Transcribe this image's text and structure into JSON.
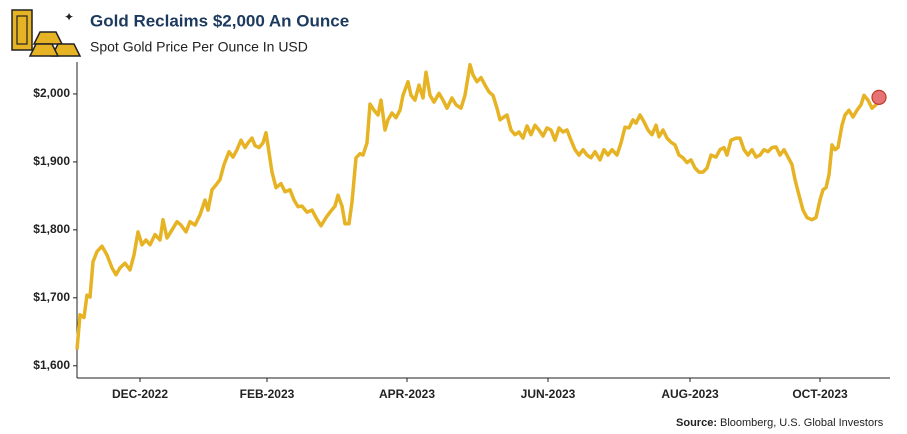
{
  "chart_data": {
    "type": "line",
    "title": "Gold Reclaims $2,000 An Ounce",
    "subtitle": "Spot Gold Price Per Ounce In USD",
    "source_label": "Source:",
    "source": "Bloomberg, U.S. Global Investors",
    "xlim": [
      0,
      406.5
    ],
    "xticks": [
      {
        "value": 31.5,
        "label": "DEC-2022"
      },
      {
        "value": 95,
        "label": "FEB-2023"
      },
      {
        "value": 165,
        "label": "APR-2023"
      },
      {
        "value": 235.5,
        "label": "JUN-2023"
      },
      {
        "value": 306.5,
        "label": "AUG-2023"
      },
      {
        "value": 371.5,
        "label": "OCT-2023"
      }
    ],
    "ylim": [
      1582,
      2047
    ],
    "yticks": [
      {
        "value": 1600,
        "label": "$1,600"
      },
      {
        "value": 1700,
        "label": "$1,700"
      },
      {
        "value": 1800,
        "label": "$1,800"
      },
      {
        "value": 1900,
        "label": "$1,900"
      },
      {
        "value": 2000,
        "label": "$2,000"
      }
    ],
    "grid": false,
    "last_point_marker": {
      "color": "#e57373",
      "stroke": "#c0392b"
    },
    "series": [
      {
        "name": "Spot Gold",
        "color": "#e6b325",
        "x": [
          0,
          1.5,
          3.5,
          5,
          6.5,
          8,
          10,
          12.5,
          15,
          17.5,
          19.5,
          21.5,
          24,
          26.5,
          28.5,
          30.5,
          32.5,
          34.5,
          36.5,
          39,
          41.5,
          43,
          45,
          47.5,
          50,
          52,
          54.5,
          56.5,
          59,
          61.5,
          64,
          65.5,
          67.5,
          69.5,
          71.5,
          73.5,
          76,
          78,
          80,
          82,
          84,
          85.5,
          87.5,
          89,
          91,
          93,
          94.5,
          95.5,
          97.5,
          99.5,
          102,
          104,
          106.5,
          108.5,
          110.5,
          112.5,
          115,
          117.5,
          119.5,
          122,
          124.5,
          126.5,
          129,
          130.5,
          132.5,
          134,
          136,
          137.5,
          139.5,
          141.5,
          143,
          145,
          146.5,
          148.5,
          150.5,
          152,
          154,
          155.5,
          157.5,
          159.5,
          161.5,
          163,
          165.5,
          167,
          169,
          171,
          173,
          174.5,
          176.5,
          178.5,
          181,
          183,
          185,
          187.5,
          189.5,
          192,
          194,
          196.5,
          198,
          200,
          202,
          204,
          206,
          208,
          210,
          211.5,
          213,
          215,
          217,
          219,
          221,
          223,
          225,
          227,
          229,
          231,
          233,
          235,
          237,
          239,
          241,
          243,
          245,
          247,
          249,
          251,
          253,
          255,
          257,
          259,
          261.5,
          263.5,
          265.5,
          267.5,
          270,
          272,
          274,
          276,
          278,
          279.5,
          281.5,
          283.5,
          285.5,
          287.5,
          289.5,
          291,
          293,
          295,
          297,
          299,
          301,
          303,
          305,
          307,
          309,
          311,
          313,
          315,
          317,
          319.5,
          321.5,
          323.5,
          325,
          327,
          329.5,
          331.5,
          333.5,
          335.5,
          337.5,
          339.5,
          341.5,
          343.5,
          345.5,
          347.5,
          349.5,
          351.5,
          353.5,
          355.5,
          357.5,
          359,
          361,
          363,
          365,
          367.5,
          369.5,
          371.5,
          373,
          374.5,
          376,
          377.5,
          379,
          380.5,
          382.5,
          384,
          386,
          388,
          390,
          392,
          393.5,
          395.5,
          397.5,
          399.5,
          401
        ],
        "values": [
          1624,
          1675,
          1671,
          1704,
          1701,
          1753,
          1768,
          1776,
          1763,
          1744,
          1734,
          1744,
          1751,
          1741,
          1763,
          1797,
          1778,
          1785,
          1778,
          1793,
          1785,
          1815,
          1788,
          1800,
          1812,
          1807,
          1797,
          1812,
          1807,
          1822,
          1844,
          1829,
          1859,
          1866,
          1874,
          1896,
          1915,
          1907,
          1918,
          1932,
          1921,
          1928,
          1935,
          1924,
          1921,
          1928,
          1943,
          1924,
          1885,
          1862,
          1868,
          1856,
          1859,
          1844,
          1834,
          1835,
          1826,
          1829,
          1818,
          1806,
          1818,
          1826,
          1835,
          1851,
          1835,
          1809,
          1809,
          1841,
          1906,
          1912,
          1910,
          1928,
          1985,
          1976,
          1969,
          1991,
          1947,
          1962,
          1972,
          1965,
          1976,
          1998,
          2018,
          1998,
          1991,
          2013,
          1994,
          2032,
          1998,
          1988,
          2001,
          1991,
          1979,
          1994,
          1984,
          1979,
          1998,
          2043,
          2028,
          2018,
          2024,
          2013,
          2003,
          1998,
          1979,
          1962,
          1965,
          1969,
          1947,
          1940,
          1944,
          1935,
          1953,
          1940,
          1954,
          1947,
          1938,
          1950,
          1947,
          1932,
          1950,
          1944,
          1947,
          1932,
          1918,
          1910,
          1918,
          1910,
          1906,
          1915,
          1903,
          1918,
          1910,
          1918,
          1910,
          1928,
          1951,
          1950,
          1962,
          1957,
          1969,
          1959,
          1947,
          1940,
          1954,
          1937,
          1947,
          1935,
          1929,
          1925,
          1910,
          1906,
          1899,
          1903,
          1891,
          1885,
          1885,
          1891,
          1910,
          1907,
          1918,
          1921,
          1910,
          1932,
          1935,
          1935,
          1918,
          1910,
          1918,
          1907,
          1910,
          1918,
          1915,
          1921,
          1922,
          1910,
          1918,
          1907,
          1896,
          1874,
          1851,
          1829,
          1818,
          1815,
          1818,
          1844,
          1859,
          1862,
          1881,
          1925,
          1918,
          1921,
          1954,
          1969,
          1976,
          1966,
          1976,
          1984,
          1998,
          1991,
          1979,
          1984,
          1995
        ]
      }
    ]
  }
}
